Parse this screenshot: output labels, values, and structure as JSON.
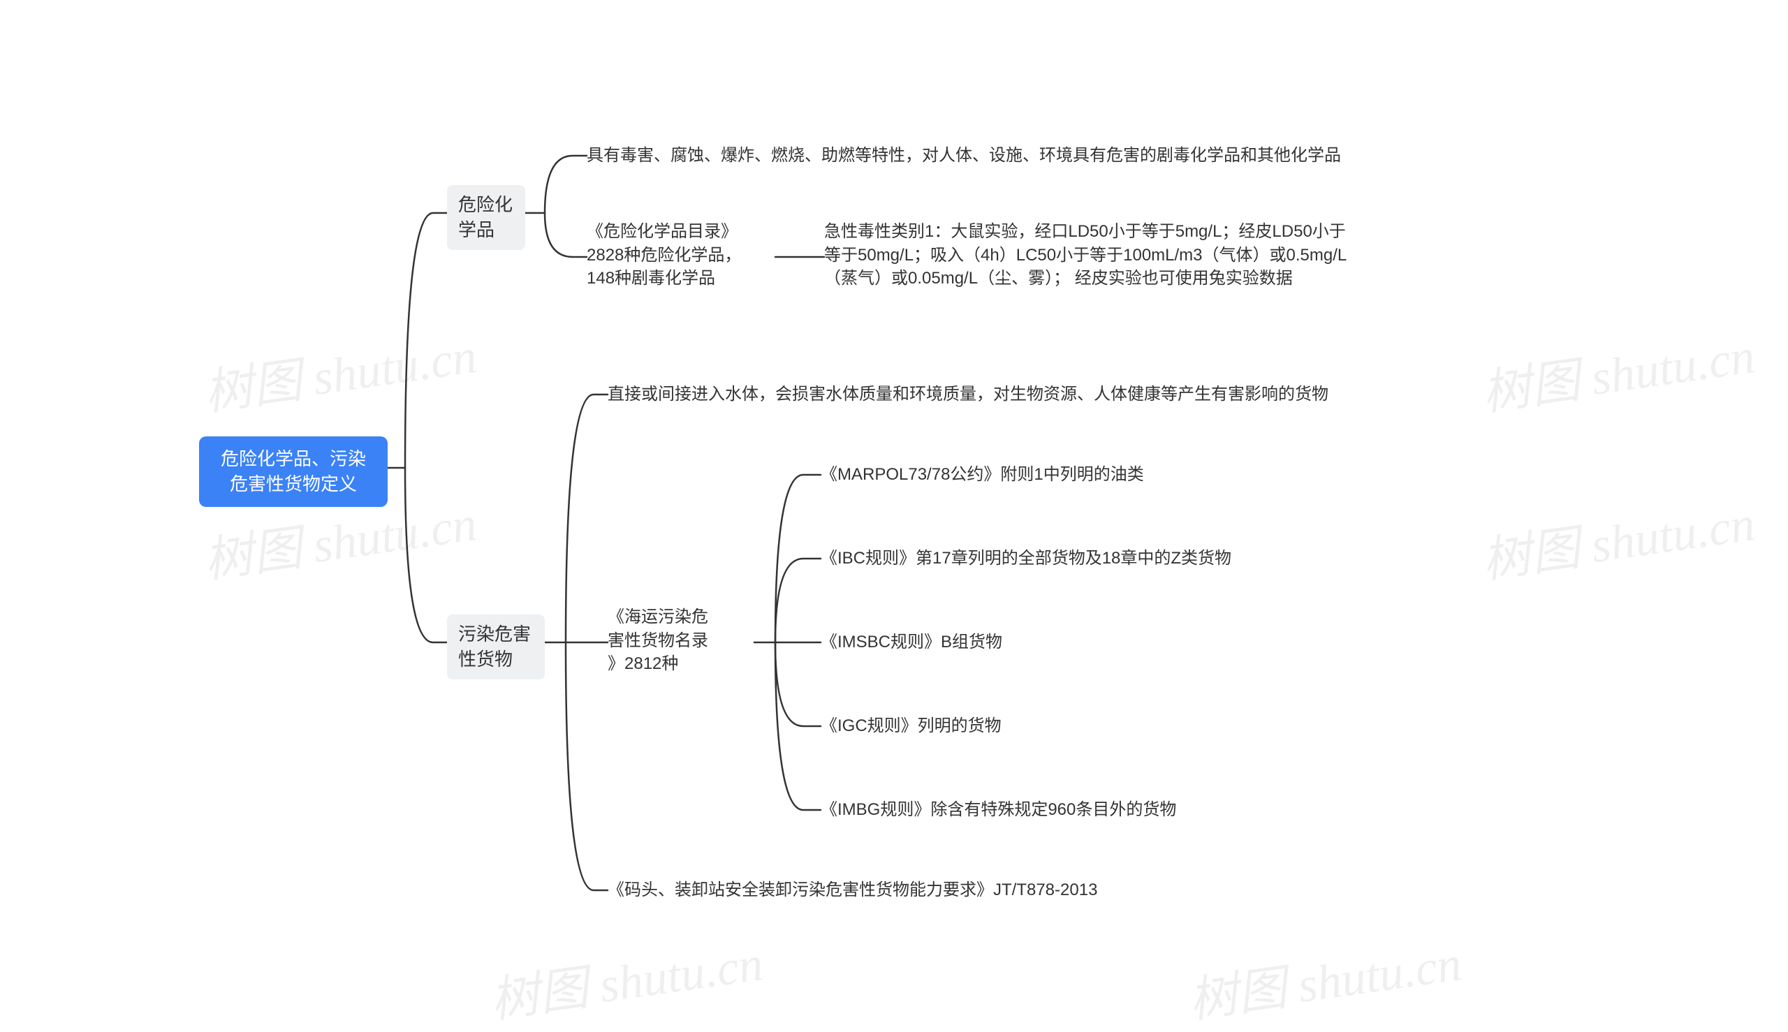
{
  "type": "mindmap-tree",
  "background_color": "#ffffff",
  "connector_color": "#333333",
  "connector_width": 2.5,
  "root": {
    "label": "危险化学品、污染\n危害性货物定义",
    "bg_color": "#3b82f6",
    "text_color": "#ffffff",
    "fontsize": 26,
    "border_radius": 10
  },
  "branch_style": {
    "bg_color": "#eef0f2",
    "text_color": "#333333",
    "fontsize": 26,
    "border_radius": 8
  },
  "leaf_style": {
    "text_color": "#333333",
    "fontsize": 24
  },
  "branches": {
    "b1": {
      "label": "危险化\n学品",
      "children": {
        "b1_l1": "具有毒害、腐蚀、爆炸、燃烧、助燃等特性，对人体、设施、环境具有危害的剧毒化学品和其他化学品",
        "b1_c2": {
          "label": "《危险化学品目录》\n2828种危险化学品，\n148种剧毒化学品",
          "children": {
            "b1_c2_l1": "急性毒性类别1：大鼠实验，经口LD50小于等于5mg/L；经皮LD50小于\n等于50mg/L；吸入（4h）LC50小于等于100mL/m3（气体）或0.5mg/L\n（蒸气）或0.05mg/L（尘、雾）； 经皮实验也可使用兔实验数据"
          }
        }
      }
    },
    "b2": {
      "label": "污染危害\n性货物",
      "children": {
        "b2_l1": "直接或间接进入水体，会损害水体质量和环境质量，对生物资源、人体健康等产生有害影响的货物",
        "b2_c2": {
          "label": "《海运污染危\n害性货物名录\n》2812种",
          "children": {
            "b2_c2_l1": "《MARPOL73/78公约》附则1中列明的油类",
            "b2_c2_l2": "《IBC规则》第17章列明的全部货物及18章中的Z类货物",
            "b2_c2_l3": "《IMSBC规则》B组货物",
            "b2_c2_l4": "《IGC规则》列明的货物",
            "b2_c2_l5": "《IMBG规则》除含有特殊规定960条目外的货物"
          }
        },
        "b2_l3": "《码头、装卸站安全装卸污染危害性货物能力要求》JT/T878-2013"
      }
    }
  },
  "watermark": {
    "text": "树图 shutu.cn",
    "color": "#000000",
    "opacity": 0.06,
    "fontsize": 70
  }
}
